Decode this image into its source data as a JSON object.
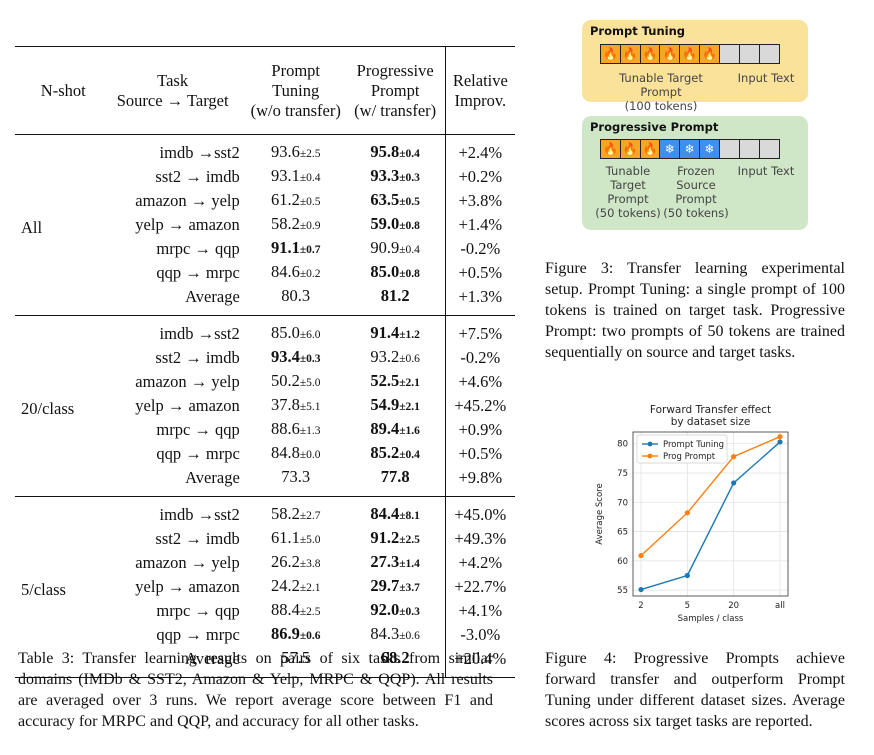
{
  "table": {
    "headers": {
      "nshot": "N-shot",
      "task_line1": "Task",
      "task_line2": "Source → Target",
      "pt_line1": "Prompt",
      "pt_line2": "Tuning",
      "pt_line3": "(w/o transfer)",
      "pp_line1": "Progressive",
      "pp_line2": "Prompt",
      "pp_line3": "(w/ transfer)",
      "rel_line1": "Relative",
      "rel_line2": "Improv."
    },
    "groups": [
      {
        "label": "All",
        "rows": [
          {
            "task": "imdb →sst2",
            "pt": "93.6",
            "pt_std": "±2.5",
            "pt_bold": false,
            "pp": "95.8",
            "pp_std": "±0.4",
            "pp_bold": true,
            "rel": "+2.4%"
          },
          {
            "task": "sst2 → imdb",
            "pt": "93.1",
            "pt_std": "±0.4",
            "pt_bold": false,
            "pp": "93.3",
            "pp_std": "±0.3",
            "pp_bold": true,
            "rel": "+0.2%"
          },
          {
            "task": "amazon → yelp",
            "pt": "61.2",
            "pt_std": "±0.5",
            "pt_bold": false,
            "pp": "63.5",
            "pp_std": "±0.5",
            "pp_bold": true,
            "rel": "+3.8%"
          },
          {
            "task": "yelp → amazon",
            "pt": "58.2",
            "pt_std": "±0.9",
            "pt_bold": false,
            "pp": "59.0",
            "pp_std": "±0.8",
            "pp_bold": true,
            "rel": "+1.4%"
          },
          {
            "task": "mrpc → qqp",
            "pt": "91.1",
            "pt_std": "±0.7",
            "pt_bold": true,
            "pp": "90.9",
            "pp_std": "±0.4",
            "pp_bold": false,
            "rel": "-0.2%"
          },
          {
            "task": "qqp → mrpc",
            "pt": "84.6",
            "pt_std": "±0.2",
            "pt_bold": false,
            "pp": "85.0",
            "pp_std": "±0.8",
            "pp_bold": true,
            "rel": "+0.5%"
          },
          {
            "task": "Average",
            "pt": "80.3",
            "pt_std": "",
            "pt_bold": false,
            "pp": "81.2",
            "pp_std": "",
            "pp_bold": true,
            "rel": "+1.3%"
          }
        ]
      },
      {
        "label": "20/class",
        "rows": [
          {
            "task": "imdb →sst2",
            "pt": "85.0",
            "pt_std": "±6.0",
            "pt_bold": false,
            "pp": "91.4",
            "pp_std": "±1.2",
            "pp_bold": true,
            "rel": "+7.5%"
          },
          {
            "task": "sst2 → imdb",
            "pt": "93.4",
            "pt_std": "±0.3",
            "pt_bold": true,
            "pp": "93.2",
            "pp_std": "±0.6",
            "pp_bold": false,
            "rel": "-0.2%"
          },
          {
            "task": "amazon → yelp",
            "pt": "50.2",
            "pt_std": "±5.0",
            "pt_bold": false,
            "pp": "52.5",
            "pp_std": "±2.1",
            "pp_bold": true,
            "rel": "+4.6%"
          },
          {
            "task": "yelp → amazon",
            "pt": "37.8",
            "pt_std": "±5.1",
            "pt_bold": false,
            "pp": "54.9",
            "pp_std": "±2.1",
            "pp_bold": true,
            "rel": "+45.2%"
          },
          {
            "task": "mrpc → qqp",
            "pt": "88.6",
            "pt_std": "±1.3",
            "pt_bold": false,
            "pp": "89.4",
            "pp_std": "±1.6",
            "pp_bold": true,
            "rel": "+0.9%"
          },
          {
            "task": "qqp → mrpc",
            "pt": "84.8",
            "pt_std": "±0.0",
            "pt_bold": false,
            "pp": "85.2",
            "pp_std": "±0.4",
            "pp_bold": true,
            "rel": "+0.5%"
          },
          {
            "task": "Average",
            "pt": "73.3",
            "pt_std": "",
            "pt_bold": false,
            "pp": "77.8",
            "pp_std": "",
            "pp_bold": true,
            "rel": "+9.8%"
          }
        ]
      },
      {
        "label": "5/class",
        "rows": [
          {
            "task": "imdb →sst2",
            "pt": "58.2",
            "pt_std": "±2.7",
            "pt_bold": false,
            "pp": "84.4",
            "pp_std": "±8.1",
            "pp_bold": true,
            "rel": "+45.0%"
          },
          {
            "task": "sst2 → imdb",
            "pt": "61.1",
            "pt_std": "±5.0",
            "pt_bold": false,
            "pp": "91.2",
            "pp_std": "±2.5",
            "pp_bold": true,
            "rel": "+49.3%"
          },
          {
            "task": "amazon → yelp",
            "pt": "26.2",
            "pt_std": "±3.8",
            "pt_bold": false,
            "pp": "27.3",
            "pp_std": "±1.4",
            "pp_bold": true,
            "rel": "+4.2%"
          },
          {
            "task": "yelp → amazon",
            "pt": "24.2",
            "pt_std": "±2.1",
            "pt_bold": false,
            "pp": "29.7",
            "pp_std": "±3.7",
            "pp_bold": true,
            "rel": "+22.7%"
          },
          {
            "task": "mrpc → qqp",
            "pt": "88.4",
            "pt_std": "±2.5",
            "pt_bold": false,
            "pp": "92.0",
            "pp_std": "±0.3",
            "pp_bold": true,
            "rel": "+4.1%"
          },
          {
            "task": "qqp → mrpc",
            "pt": "86.9",
            "pt_std": "±0.6",
            "pt_bold": true,
            "pp": "84.3",
            "pp_std": "±0.6",
            "pp_bold": false,
            "rel": "-3.0%"
          },
          {
            "task": "Average",
            "pt": "57.5",
            "pt_std": "",
            "pt_bold": false,
            "pp": "68.2",
            "pp_std": "",
            "pp_bold": true,
            "rel": "+20.4%"
          }
        ]
      }
    ]
  },
  "table_caption": "Table 3: Transfer learning results on pairs of six tasks from similar domains (IMDb & SST2, Amazon & Yelp, MRPC & QQP). All results are averaged over 3 runs. We report average score between F1 and accuracy for MRPC and QQP, and accuracy for all other tasks.",
  "figure3": {
    "prompt_tuning": {
      "title": "Prompt Tuning",
      "tunable_label": "Tunable Target Prompt",
      "tunable_count": "(100 tokens)",
      "input_label": "Input Text",
      "fire_icon": "🔥"
    },
    "progressive_prompt": {
      "title": "Progressive Prompt",
      "tunable_line1": "Tunable",
      "tunable_line2": "Target",
      "tunable_line3": "Prompt",
      "tunable_count": "(50 tokens)",
      "frozen_line1": "Frozen",
      "frozen_line2": "Source",
      "frozen_line3": "Prompt",
      "frozen_count": "(50 tokens)",
      "input_label": "Input Text",
      "fire_icon": "🔥",
      "snow_icon": "❄"
    },
    "caption": "Figure 3: Transfer learning experimental setup. Prompt Tuning: a single prompt of 100 tokens is trained on target task. Progressive Prompt: two prompts of 50 tokens are trained sequentially on source and target tasks."
  },
  "figure4": {
    "caption": "Figure 4: Progressive Prompts achieve forward transfer and outperform Prompt Tuning under different dataset sizes. Average scores across six target tasks are reported."
  },
  "chart_data": {
    "type": "line",
    "title": "Forward Transfer effect by dataset size",
    "title_line1": "Forward Transfer effect",
    "title_line2": "by dataset size",
    "xlabel": "Samples / class",
    "ylabel": "Average Score",
    "categories": [
      "2",
      "5",
      "20",
      "all"
    ],
    "yticks": [
      55,
      60,
      65,
      70,
      75,
      80
    ],
    "ylim": [
      54,
      82
    ],
    "grid": true,
    "legend_position": "top-left",
    "series": [
      {
        "name": "Prompt Tuning",
        "color": "#1f77b4",
        "values": [
          55.1,
          57.5,
          73.3,
          80.3
        ]
      },
      {
        "name": "Prog Prompt",
        "color": "#ff7f0e",
        "values": [
          60.9,
          68.2,
          77.8,
          81.2
        ]
      }
    ]
  }
}
